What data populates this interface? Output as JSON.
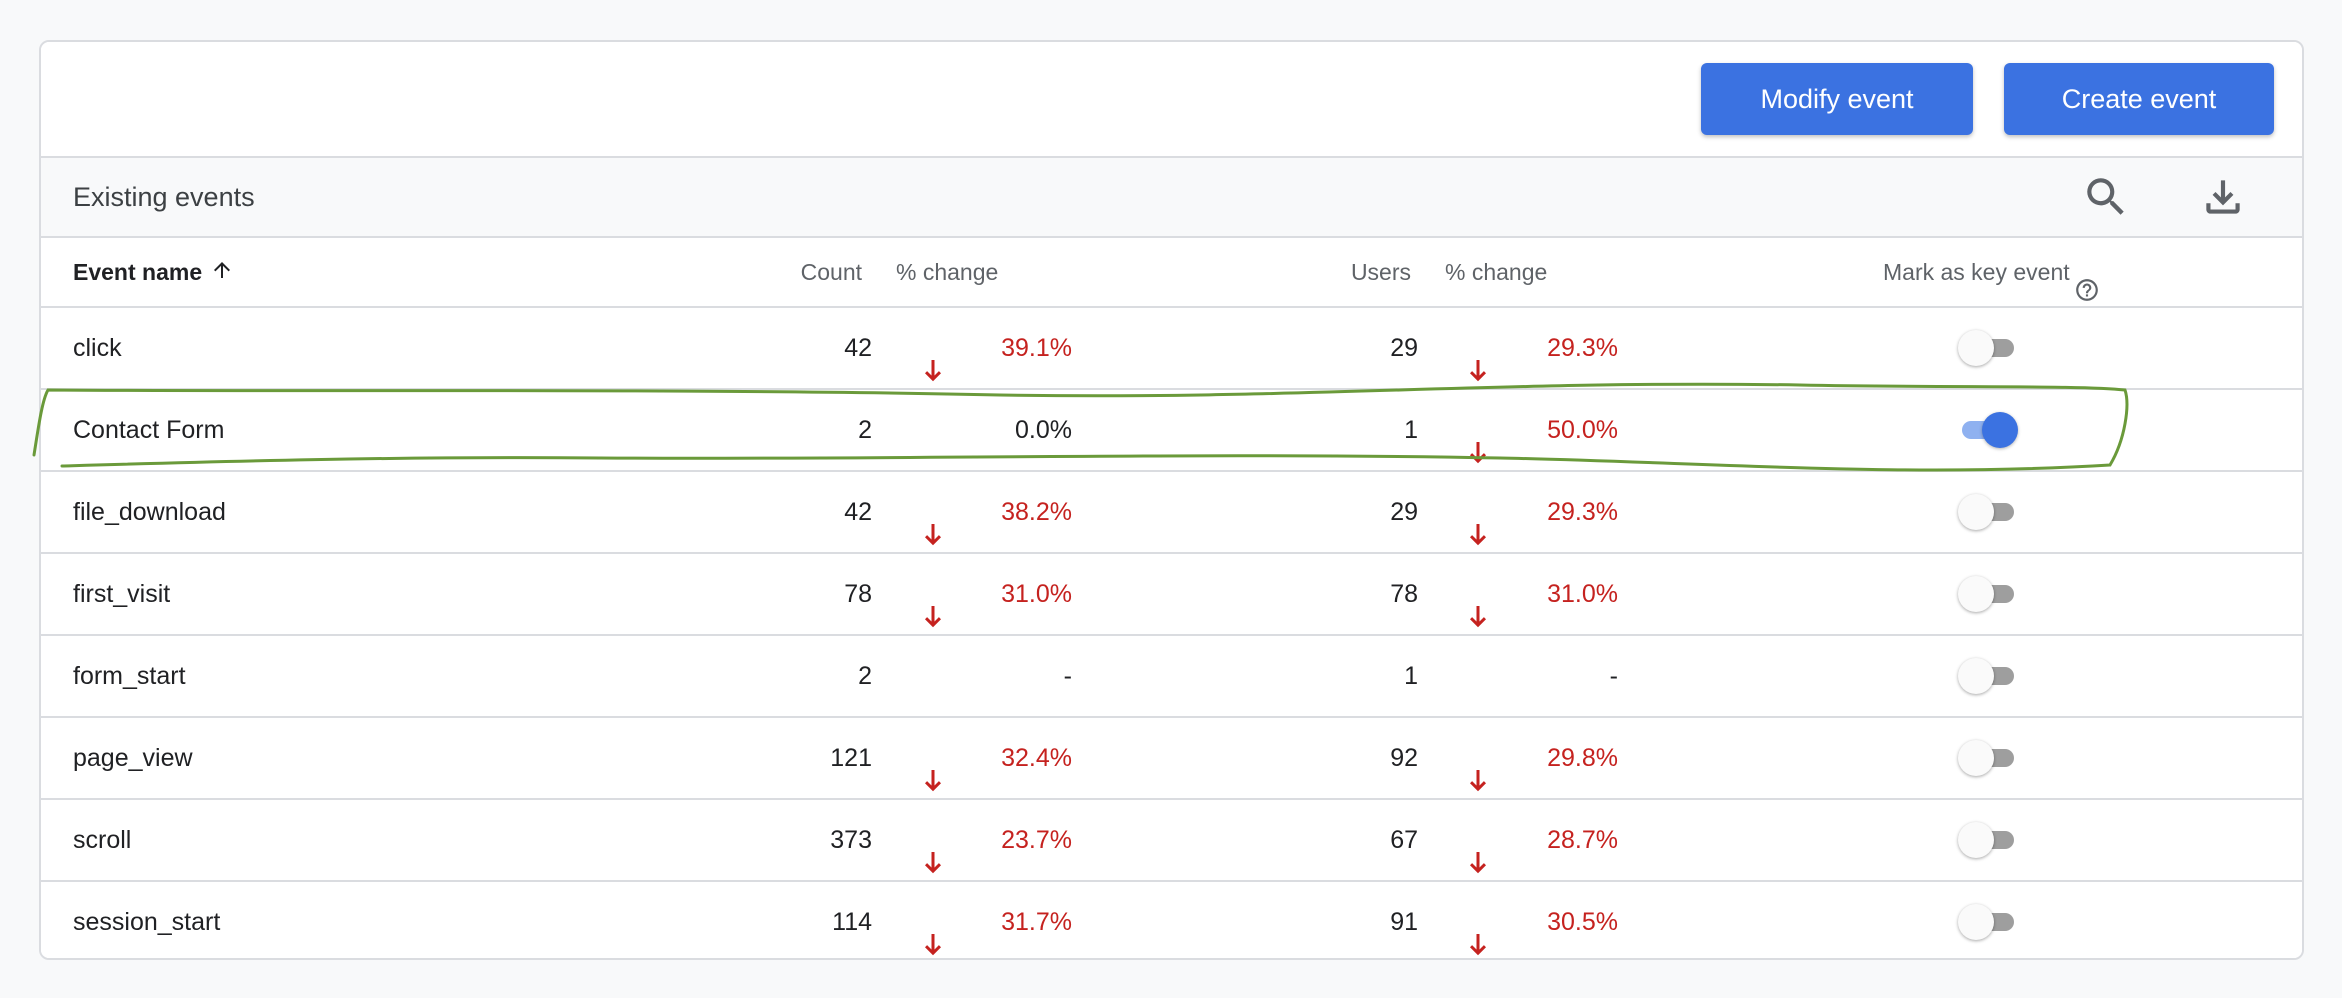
{
  "toolbar": {
    "modify_label": "Modify event",
    "create_label": "Create event"
  },
  "section": {
    "title": "Existing events",
    "icons": [
      "search-icon",
      "download-icon"
    ]
  },
  "table": {
    "headers": {
      "event_name": "Event name",
      "count": "Count",
      "count_change": "% change",
      "users": "Users",
      "users_change": "% change",
      "key_event": "Mark as key event"
    },
    "sort": {
      "column": "Event name",
      "direction": "ascending"
    },
    "rows": [
      {
        "name": "click",
        "count": "42",
        "count_change": "39.1%",
        "count_down": true,
        "users": "29",
        "users_change": "29.3%",
        "users_down": true,
        "key_event": false
      },
      {
        "name": "Contact Form",
        "count": "2",
        "count_change": "0.0%",
        "count_down": false,
        "users": "1",
        "users_change": "50.0%",
        "users_down": true,
        "key_event": true
      },
      {
        "name": "file_download",
        "count": "42",
        "count_change": "38.2%",
        "count_down": true,
        "users": "29",
        "users_change": "29.3%",
        "users_down": true,
        "key_event": false
      },
      {
        "name": "first_visit",
        "count": "78",
        "count_change": "31.0%",
        "count_down": true,
        "users": "78",
        "users_change": "31.0%",
        "users_down": true,
        "key_event": false
      },
      {
        "name": "form_start",
        "count": "2",
        "count_change": "-",
        "count_down": false,
        "users": "1",
        "users_change": "-",
        "users_down": false,
        "key_event": false
      },
      {
        "name": "page_view",
        "count": "121",
        "count_change": "32.4%",
        "count_down": true,
        "users": "92",
        "users_change": "29.8%",
        "users_down": true,
        "key_event": false
      },
      {
        "name": "scroll",
        "count": "373",
        "count_change": "23.7%",
        "count_down": true,
        "users": "67",
        "users_change": "28.7%",
        "users_down": true,
        "key_event": false
      },
      {
        "name": "session_start",
        "count": "114",
        "count_change": "31.7%",
        "count_down": true,
        "users": "91",
        "users_change": "30.5%",
        "users_down": true,
        "key_event": false
      }
    ]
  },
  "colors": {
    "primary": "#3b72e1",
    "negative": "#c5221f",
    "annotation": "#6a9a3a",
    "border": "#dadce0"
  }
}
